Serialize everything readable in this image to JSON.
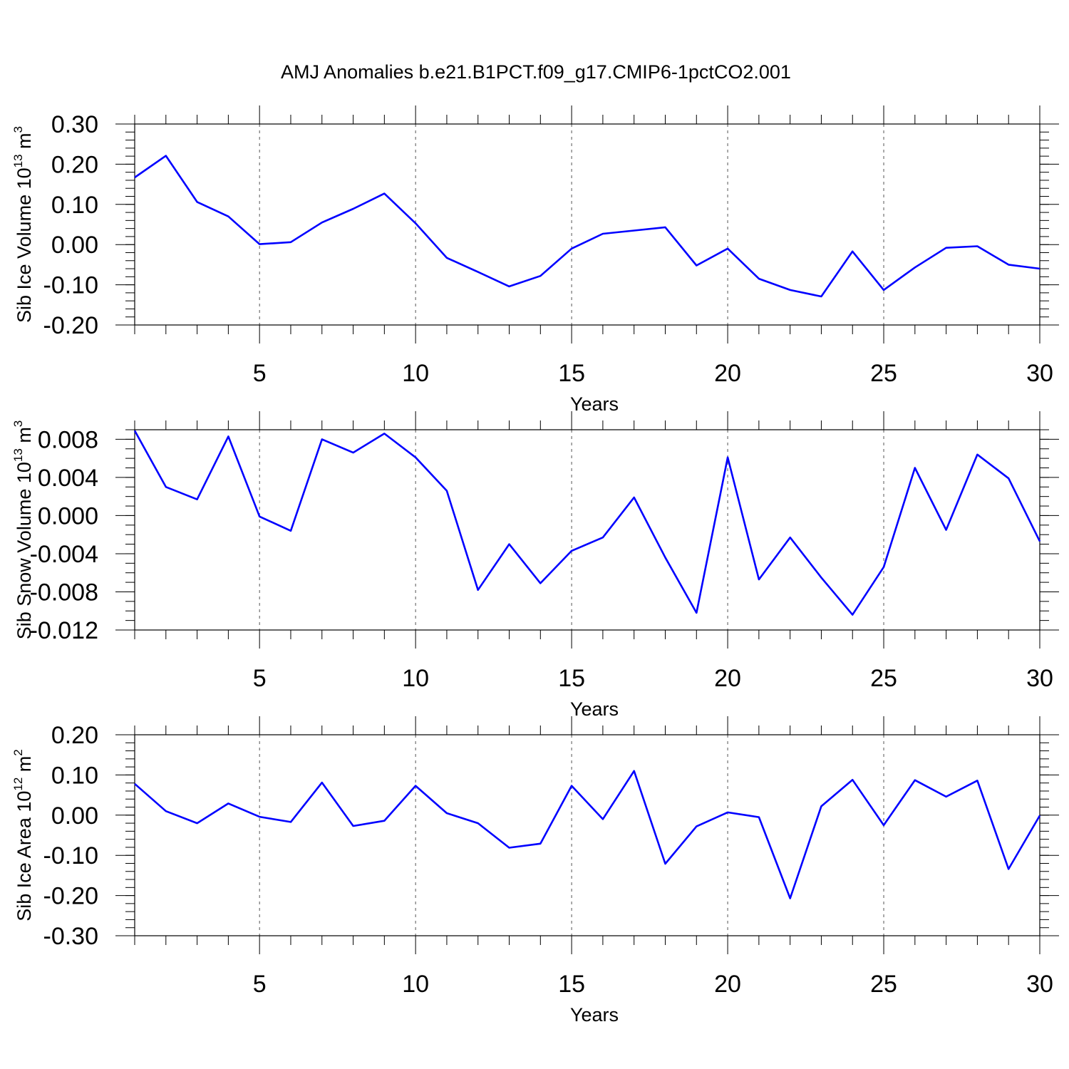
{
  "chart_data": [
    {
      "type": "line",
      "title": "AMJ Anomalies b.e21.B1PCT.f09_g17.CMIP6-1pctCO2.001",
      "ylabel_main": "Sib Ice Volume 10",
      "ylabel_exp": "13",
      "ylabel_unit": " m",
      "ylabel_unit_exp": "3",
      "xlabel": "Years",
      "xlim": [
        1,
        30
      ],
      "ylim": [
        -0.2,
        0.3
      ],
      "xticks": [
        5,
        10,
        15,
        20,
        25,
        30
      ],
      "xtick_labels": [
        "5",
        "10",
        "15",
        "20",
        "25",
        "30"
      ],
      "yticks": [
        -0.2,
        -0.1,
        0.0,
        0.1,
        0.2,
        0.3
      ],
      "ytick_labels": [
        "-0.20",
        "-0.10",
        "0.00",
        "0.10",
        "0.20",
        "0.30"
      ],
      "y_minor_step": 0.02,
      "grid": "dashed vertical at major x ticks",
      "color": "#0000ff",
      "x": [
        1,
        2,
        3,
        4,
        5,
        6,
        7,
        8,
        9,
        10,
        11,
        12,
        13,
        14,
        15,
        16,
        17,
        18,
        19,
        20,
        21,
        22,
        23,
        24,
        25,
        26,
        27,
        28,
        29,
        30
      ],
      "values": [
        0.167,
        0.221,
        0.106,
        0.07,
        0.001,
        0.006,
        0.055,
        0.089,
        0.127,
        0.053,
        -0.033,
        -0.068,
        -0.104,
        -0.078,
        -0.01,
        0.027,
        0.035,
        0.043,
        -0.052,
        -0.01,
        -0.085,
        -0.113,
        -0.129,
        -0.017,
        -0.113,
        -0.057,
        -0.008,
        -0.004,
        -0.05,
        -0.06
      ]
    },
    {
      "type": "line",
      "ylabel_main": "Sib Snow Volume 10",
      "ylabel_exp": "13",
      "ylabel_unit": " m",
      "ylabel_unit_exp": "3",
      "xlabel": "Years",
      "xlim": [
        1,
        30
      ],
      "ylim": [
        -0.012,
        0.009
      ],
      "xticks": [
        5,
        10,
        15,
        20,
        25,
        30
      ],
      "xtick_labels": [
        "5",
        "10",
        "15",
        "20",
        "25",
        "30"
      ],
      "yticks": [
        -0.012,
        -0.008,
        -0.004,
        0.0,
        0.004,
        0.008
      ],
      "ytick_labels": [
        "-0.012",
        "-0.008",
        "-0.004",
        "0.000",
        "0.004",
        "0.008"
      ],
      "y_minor_step": 0.001,
      "grid": "dashed vertical at major x ticks",
      "color": "#0000ff",
      "x": [
        1,
        2,
        3,
        4,
        5,
        6,
        7,
        8,
        9,
        10,
        11,
        12,
        13,
        14,
        15,
        16,
        17,
        18,
        19,
        20,
        21,
        22,
        23,
        24,
        25,
        26,
        27,
        28,
        29,
        30
      ],
      "values": [
        0.0089,
        0.003,
        0.0017,
        0.0083,
        -0.0001,
        -0.0016,
        0.008,
        0.0066,
        0.0086,
        0.0061,
        0.0026,
        -0.0078,
        -0.003,
        -0.0071,
        -0.0037,
        -0.0023,
        0.0019,
        -0.0044,
        -0.0102,
        0.0061,
        -0.0067,
        -0.0023,
        -0.0065,
        -0.0104,
        -0.0054,
        0.005,
        -0.0015,
        0.0064,
        0.0039,
        -0.0027
      ]
    },
    {
      "type": "line",
      "ylabel_main": "Sib Ice Area 10",
      "ylabel_exp": "12",
      "ylabel_unit": " m",
      "ylabel_unit_exp": "2",
      "xlabel": "Years",
      "xlim": [
        1,
        30
      ],
      "ylim": [
        -0.3,
        0.2
      ],
      "xticks": [
        5,
        10,
        15,
        20,
        25,
        30
      ],
      "xtick_labels": [
        "5",
        "10",
        "15",
        "20",
        "25",
        "30"
      ],
      "yticks": [
        -0.3,
        -0.2,
        -0.1,
        0.0,
        0.1,
        0.2
      ],
      "ytick_labels": [
        "-0.30",
        "-0.20",
        "-0.10",
        "0.00",
        "0.10",
        "0.20"
      ],
      "y_minor_step": 0.02,
      "grid": "dashed vertical at major x ticks",
      "color": "#0000ff",
      "x": [
        1,
        2,
        3,
        4,
        5,
        6,
        7,
        8,
        9,
        10,
        11,
        12,
        13,
        14,
        15,
        16,
        17,
        18,
        19,
        20,
        21,
        22,
        23,
        24,
        25,
        26,
        27,
        28,
        29,
        30
      ],
      "values": [
        0.078,
        0.01,
        -0.02,
        0.029,
        -0.004,
        -0.017,
        0.081,
        -0.027,
        -0.014,
        0.073,
        0.005,
        -0.02,
        -0.081,
        -0.071,
        0.073,
        -0.01,
        0.11,
        -0.121,
        -0.028,
        0.007,
        -0.005,
        -0.207,
        0.022,
        0.088,
        -0.025,
        0.087,
        0.046,
        0.086,
        -0.134,
        -0.001
      ]
    }
  ]
}
